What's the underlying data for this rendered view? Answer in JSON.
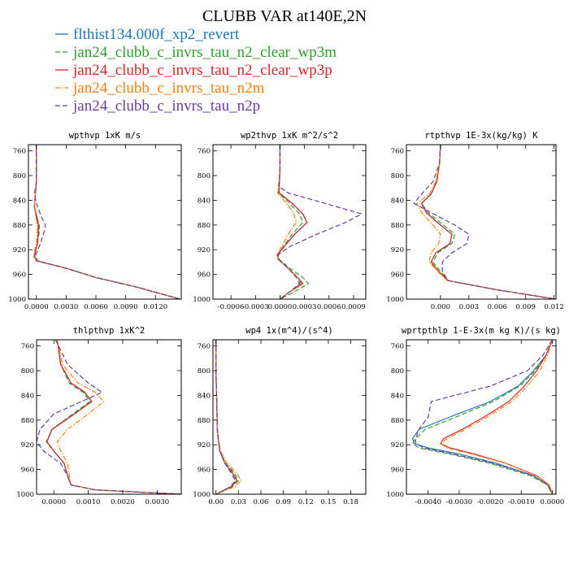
{
  "figure": {
    "title": "CLUBB VAR at140E,2N"
  },
  "legend": [
    {
      "text": "flthist134.000f_xp2_revert",
      "color": "#1f77b4",
      "dash": "solid"
    },
    {
      "text": "jan24_clubb_c_invrs_tau_n2_clear_wp3m",
      "color": "#2ca02c",
      "dash": "dash"
    },
    {
      "text": "jan24_clubb_c_invrs_tau_n2_clear_wp3p",
      "color": "#d62728",
      "dash": "solid"
    },
    {
      "text": "jan24_clubb_c_invrs_tau_n2m",
      "color": "#ff7f0e",
      "dash": "dashdot"
    },
    {
      "text": "jan24_clubb_c_invrs_tau_n2p",
      "color": "#6a3d9a",
      "dash": "dash"
    }
  ],
  "chart_data": [
    {
      "type": "line",
      "title": "wpthvp  1xK m/s",
      "xlim": [
        -0.0008,
        0.0146
      ],
      "ylim": [
        750,
        1000
      ],
      "y_reversed": true,
      "xticks": [
        "0.0000",
        "0.0030",
        "0.0060",
        "0.0090",
        "0.0120"
      ],
      "xtick_values": [
        0.0,
        0.003,
        0.006,
        0.009,
        0.012
      ],
      "yticks": [
        "760",
        "800",
        "840",
        "880",
        "920",
        "960",
        "1000"
      ],
      "ytick_values": [
        760,
        800,
        840,
        880,
        920,
        960,
        1000
      ],
      "y": [
        750,
        780,
        810,
        830,
        850,
        870,
        880,
        890,
        910,
        930,
        938,
        950,
        965,
        980,
        1000
      ],
      "series": [
        {
          "values": [
            0.0,
            0.0,
            0.0,
            -0.0001,
            -0.0002,
            0.0,
            0.0002,
            0.0002,
            0.0001,
            -0.0002,
            0.0,
            0.003,
            0.006,
            0.01,
            0.0145
          ]
        },
        {
          "values": [
            0.0,
            0.0,
            0.0,
            -0.0001,
            -0.0002,
            0.0001,
            0.0003,
            0.0003,
            0.0001,
            -0.0002,
            0.0,
            0.003,
            0.006,
            0.01,
            0.0145
          ]
        },
        {
          "values": [
            0.0,
            0.0,
            0.0,
            -0.0001,
            -0.0002,
            0.0001,
            0.0002,
            0.0002,
            0.0001,
            -0.0002,
            0.0,
            0.003,
            0.006,
            0.01,
            0.0145
          ]
        },
        {
          "values": [
            0.0,
            0.0,
            0.0,
            -0.0001,
            -0.0002,
            0.0,
            0.0001,
            0.0001,
            0.0,
            -0.0003,
            0.0,
            0.003,
            0.006,
            0.01,
            0.0145
          ]
        },
        {
          "values": [
            0.0,
            0.0,
            0.0,
            -0.0002,
            0.0001,
            0.0006,
            0.0009,
            0.0008,
            0.0004,
            -0.0001,
            0.0001,
            0.003,
            0.006,
            0.01,
            0.0145
          ]
        }
      ]
    },
    {
      "type": "line",
      "title": "wp2thvp  1xK m^2/s^2",
      "xlim": [
        -0.00082,
        0.00105
      ],
      "ylim": [
        750,
        1000
      ],
      "y_reversed": true,
      "xticks": [
        "-0.0006",
        "-0.0003",
        "0.0000",
        "0.0003",
        "0.0006",
        "0.0009"
      ],
      "xtick_values": [
        -0.0006,
        -0.0003,
        0.0,
        0.0003,
        0.0006,
        0.0009
      ],
      "yticks": [
        "760",
        "800",
        "840",
        "880",
        "920",
        "960",
        "1000"
      ],
      "ytick_values": [
        760,
        800,
        840,
        880,
        920,
        960,
        1000
      ],
      "y": [
        750,
        790,
        818,
        828,
        845,
        862,
        876,
        895,
        915,
        928,
        936,
        950,
        965,
        975,
        990,
        1000
      ],
      "series": [
        {
          "values": [
            0.0,
            0.0,
            -1e-05,
            -1e-05,
            0.00015,
            0.00028,
            0.00033,
            0.00018,
            5e-05,
            -3e-05,
            -2e-05,
            0.0001,
            0.00022,
            0.00026,
            0.0001,
            0.0
          ]
        },
        {
          "values": [
            0.0,
            0.0,
            -1e-05,
            -2e-05,
            0.00012,
            0.00024,
            0.00028,
            0.00015,
            4e-05,
            -3e-05,
            -1e-05,
            0.00012,
            0.00028,
            0.00035,
            0.00015,
            0.0
          ]
        },
        {
          "values": [
            0.0,
            0.0,
            -1e-05,
            -1e-05,
            0.00015,
            0.00028,
            0.00033,
            0.00018,
            5e-05,
            -3e-05,
            -2e-05,
            0.0001,
            0.00022,
            0.00028,
            0.0001,
            0.0
          ]
        },
        {
          "values": [
            0.0,
            0.0,
            -2e-05,
            -3e-05,
            8e-05,
            0.00017,
            0.0002,
            0.0001,
            2e-05,
            -4e-05,
            -2e-05,
            0.0001,
            0.00022,
            0.00026,
            0.0001,
            0.0
          ]
        },
        {
          "values": [
            0.0,
            0.0,
            -1e-05,
            0.0001,
            0.00055,
            0.001,
            0.0008,
            0.00045,
            0.00012,
            -2e-05,
            -1e-05,
            0.0001,
            0.0002,
            0.00024,
            0.0001,
            0.0
          ]
        }
      ]
    },
    {
      "type": "line",
      "title": "rtpthvp  1E-3x(kg/kg) K",
      "xlim": [
        -0.0036,
        0.0122
      ],
      "ylim": [
        750,
        1000
      ],
      "y_reversed": true,
      "xticks": [
        "0.000",
        "0.003",
        "0.006",
        "0.009",
        "0.012"
      ],
      "xtick_values": [
        0.0,
        0.003,
        0.006,
        0.009,
        0.012
      ],
      "yticks": [
        "760",
        "800",
        "840",
        "880",
        "920",
        "960",
        "1000"
      ],
      "ytick_values": [
        760,
        800,
        840,
        880,
        920,
        960,
        1000
      ],
      "y": [
        750,
        780,
        810,
        830,
        845,
        860,
        880,
        895,
        910,
        925,
        940,
        955,
        970,
        985,
        1000
      ],
      "series": [
        {
          "values": [
            0.0,
            -0.0001,
            -0.0004,
            -0.001,
            -0.002,
            -0.0015,
            0.0,
            0.0012,
            0.001,
            -0.0005,
            -0.001,
            -0.0002,
            0.0008,
            0.006,
            0.0122
          ]
        },
        {
          "values": [
            0.0,
            -0.0001,
            -0.0004,
            -0.001,
            -0.002,
            -0.0013,
            0.0003,
            0.0015,
            0.0012,
            -0.0003,
            -0.0008,
            0.0,
            0.0008,
            0.006,
            0.0122
          ]
        },
        {
          "values": [
            0.0,
            -0.0001,
            -0.0004,
            -0.001,
            -0.002,
            -0.0015,
            0.0,
            0.0012,
            0.001,
            -0.0005,
            -0.001,
            -0.0002,
            0.0008,
            0.006,
            0.0122
          ]
        },
        {
          "values": [
            0.0,
            -0.0001,
            -0.0005,
            -0.0012,
            -0.0025,
            -0.002,
            -0.0008,
            0.0,
            -0.0002,
            -0.001,
            -0.0012,
            -0.0003,
            0.0007,
            0.006,
            0.0122
          ]
        },
        {
          "values": [
            0.0,
            -0.0001,
            -0.0008,
            -0.002,
            -0.0028,
            -0.001,
            0.0015,
            0.003,
            0.0028,
            0.0012,
            0.0002,
            0.0002,
            0.0008,
            0.006,
            0.0122
          ]
        }
      ]
    },
    {
      "type": "line",
      "title": "thlpthvp  1xK^2",
      "xlim": [
        -0.0005,
        0.0037
      ],
      "ylim": [
        750,
        1000
      ],
      "y_reversed": true,
      "xticks": [
        "0.0000",
        "0.0010",
        "0.0020",
        "0.0030"
      ],
      "xtick_values": [
        0.0,
        0.001,
        0.002,
        0.003
      ],
      "yticks": [
        "760",
        "800",
        "840",
        "880",
        "920",
        "960",
        "1000"
      ],
      "ytick_values": [
        760,
        800,
        840,
        880,
        920,
        960,
        1000
      ],
      "y": [
        750,
        790,
        820,
        835,
        850,
        870,
        895,
        915,
        930,
        950,
        970,
        985,
        993,
        1000
      ],
      "series": [
        {
          "values": [
            0.0001,
            0.0002,
            0.0005,
            0.0009,
            0.0011,
            0.0006,
            -5e-05,
            -0.0002,
            0.0,
            0.0003,
            0.0004,
            0.0005,
            0.0012,
            0.0037
          ]
        },
        {
          "values": [
            0.0001,
            0.0002,
            0.00045,
            0.00085,
            0.00105,
            0.00055,
            -5e-05,
            -0.00022,
            0.0,
            0.0003,
            0.0004,
            0.0005,
            0.0012,
            0.0037
          ]
        },
        {
          "values": [
            0.0001,
            0.0002,
            0.0005,
            0.0009,
            0.0011,
            0.0006,
            -5e-05,
            -0.0002,
            0.0,
            0.0003,
            0.0004,
            0.0005,
            0.0012,
            0.0037
          ]
        },
        {
          "values": [
            0.0001,
            0.00025,
            0.0007,
            0.0012,
            0.00145,
            0.001,
            0.0004,
            0.0001,
            0.0002,
            0.0004,
            0.00045,
            0.0005,
            0.0012,
            0.0037
          ]
        },
        {
          "values": [
            5e-05,
            0.0004,
            0.001,
            0.0014,
            0.0008,
            0.0,
            -0.0004,
            -0.0005,
            -0.0003,
            0.0002,
            0.0004,
            0.0005,
            0.0012,
            0.0037
          ]
        }
      ]
    },
    {
      "type": "line",
      "title": "wp4  1x(m^4)/(s^4)",
      "xlim": [
        -0.004,
        0.2
      ],
      "ylim": [
        750,
        1000
      ],
      "y_reversed": true,
      "xticks": [
        "0.00",
        "0.03",
        "0.06",
        "0.09",
        "0.12",
        "0.15",
        "0.18"
      ],
      "xtick_values": [
        0.0,
        0.03,
        0.06,
        0.09,
        0.12,
        0.15,
        0.18
      ],
      "yticks": [
        "760",
        "800",
        "840",
        "880",
        "920",
        "960",
        "1000"
      ],
      "ytick_values": [
        760,
        800,
        840,
        880,
        920,
        960,
        1000
      ],
      "y": [
        750,
        800,
        850,
        900,
        930,
        950,
        965,
        978,
        988,
        995,
        1000
      ],
      "series": [
        {
          "values": [
            0.0,
            0.0,
            0.001,
            0.002,
            0.005,
            0.012,
            0.022,
            0.028,
            0.02,
            0.008,
            0.0
          ]
        },
        {
          "values": [
            0.0,
            0.0,
            0.001,
            0.002,
            0.005,
            0.013,
            0.024,
            0.03,
            0.022,
            0.009,
            0.0
          ]
        },
        {
          "values": [
            0.0,
            0.0,
            0.001,
            0.002,
            0.005,
            0.012,
            0.022,
            0.028,
            0.02,
            0.008,
            0.0
          ]
        },
        {
          "values": [
            0.0,
            0.0,
            0.001,
            0.002,
            0.006,
            0.015,
            0.027,
            0.034,
            0.025,
            0.01,
            0.0
          ]
        },
        {
          "values": [
            0.0,
            0.0,
            0.001,
            0.002,
            0.005,
            0.012,
            0.02,
            0.026,
            0.019,
            0.008,
            0.0
          ]
        }
      ]
    },
    {
      "type": "line",
      "title": "wprtpthlp  1-E-3x(m kg K)/(s kg)",
      "xlim": [
        -0.0047,
        0.00012
      ],
      "ylim": [
        750,
        1000
      ],
      "y_reversed": true,
      "xticks": [
        "-0.0040",
        "-0.0030",
        "-0.0020",
        "-0.0010",
        "0.0000"
      ],
      "xtick_values": [
        -0.004,
        -0.003,
        -0.002,
        -0.001,
        0.0
      ],
      "yticks": [
        "760",
        "800",
        "840",
        "880",
        "920",
        "960",
        "1000"
      ],
      "ytick_values": [
        760,
        800,
        840,
        880,
        920,
        960,
        1000
      ],
      "y": [
        750,
        775,
        800,
        825,
        850,
        875,
        895,
        910,
        918,
        925,
        935,
        950,
        970,
        985,
        1000
      ],
      "series": [
        {
          "values": [
            0.0,
            -0.0002,
            -0.0006,
            -0.0011,
            -0.002,
            -0.0033,
            -0.0043,
            -0.0045,
            -0.00445,
            -0.004,
            -0.003,
            -0.0018,
            -0.0006,
            -0.00015,
            0.0
          ]
        },
        {
          "values": [
            0.0,
            -0.0002,
            -0.00055,
            -0.00105,
            -0.0019,
            -0.0031,
            -0.0041,
            -0.0044,
            -0.0045,
            -0.0043,
            -0.0033,
            -0.002,
            -0.0007,
            -0.00015,
            0.0
          ]
        },
        {
          "values": [
            0.0,
            -0.0002,
            -0.0005,
            -0.0009,
            -0.0014,
            -0.0022,
            -0.0029,
            -0.0035,
            -0.0036,
            -0.0033,
            -0.0025,
            -0.0015,
            -0.0005,
            -0.0001,
            0.0
          ]
        },
        {
          "values": [
            0.0,
            -0.00015,
            -0.0004,
            -0.0008,
            -0.0013,
            -0.0021,
            -0.0028,
            -0.0034,
            -0.0036,
            -0.0034,
            -0.0026,
            -0.0015,
            -0.0005,
            -0.0001,
            0.0
          ]
        },
        {
          "values": [
            0.0,
            -0.0003,
            -0.0008,
            -0.002,
            -0.0039,
            -0.004,
            -0.0043,
            -0.0044,
            -0.0044,
            -0.00415,
            -0.0032,
            -0.0019,
            -0.0006,
            -0.00015,
            0.0
          ]
        }
      ]
    }
  ]
}
